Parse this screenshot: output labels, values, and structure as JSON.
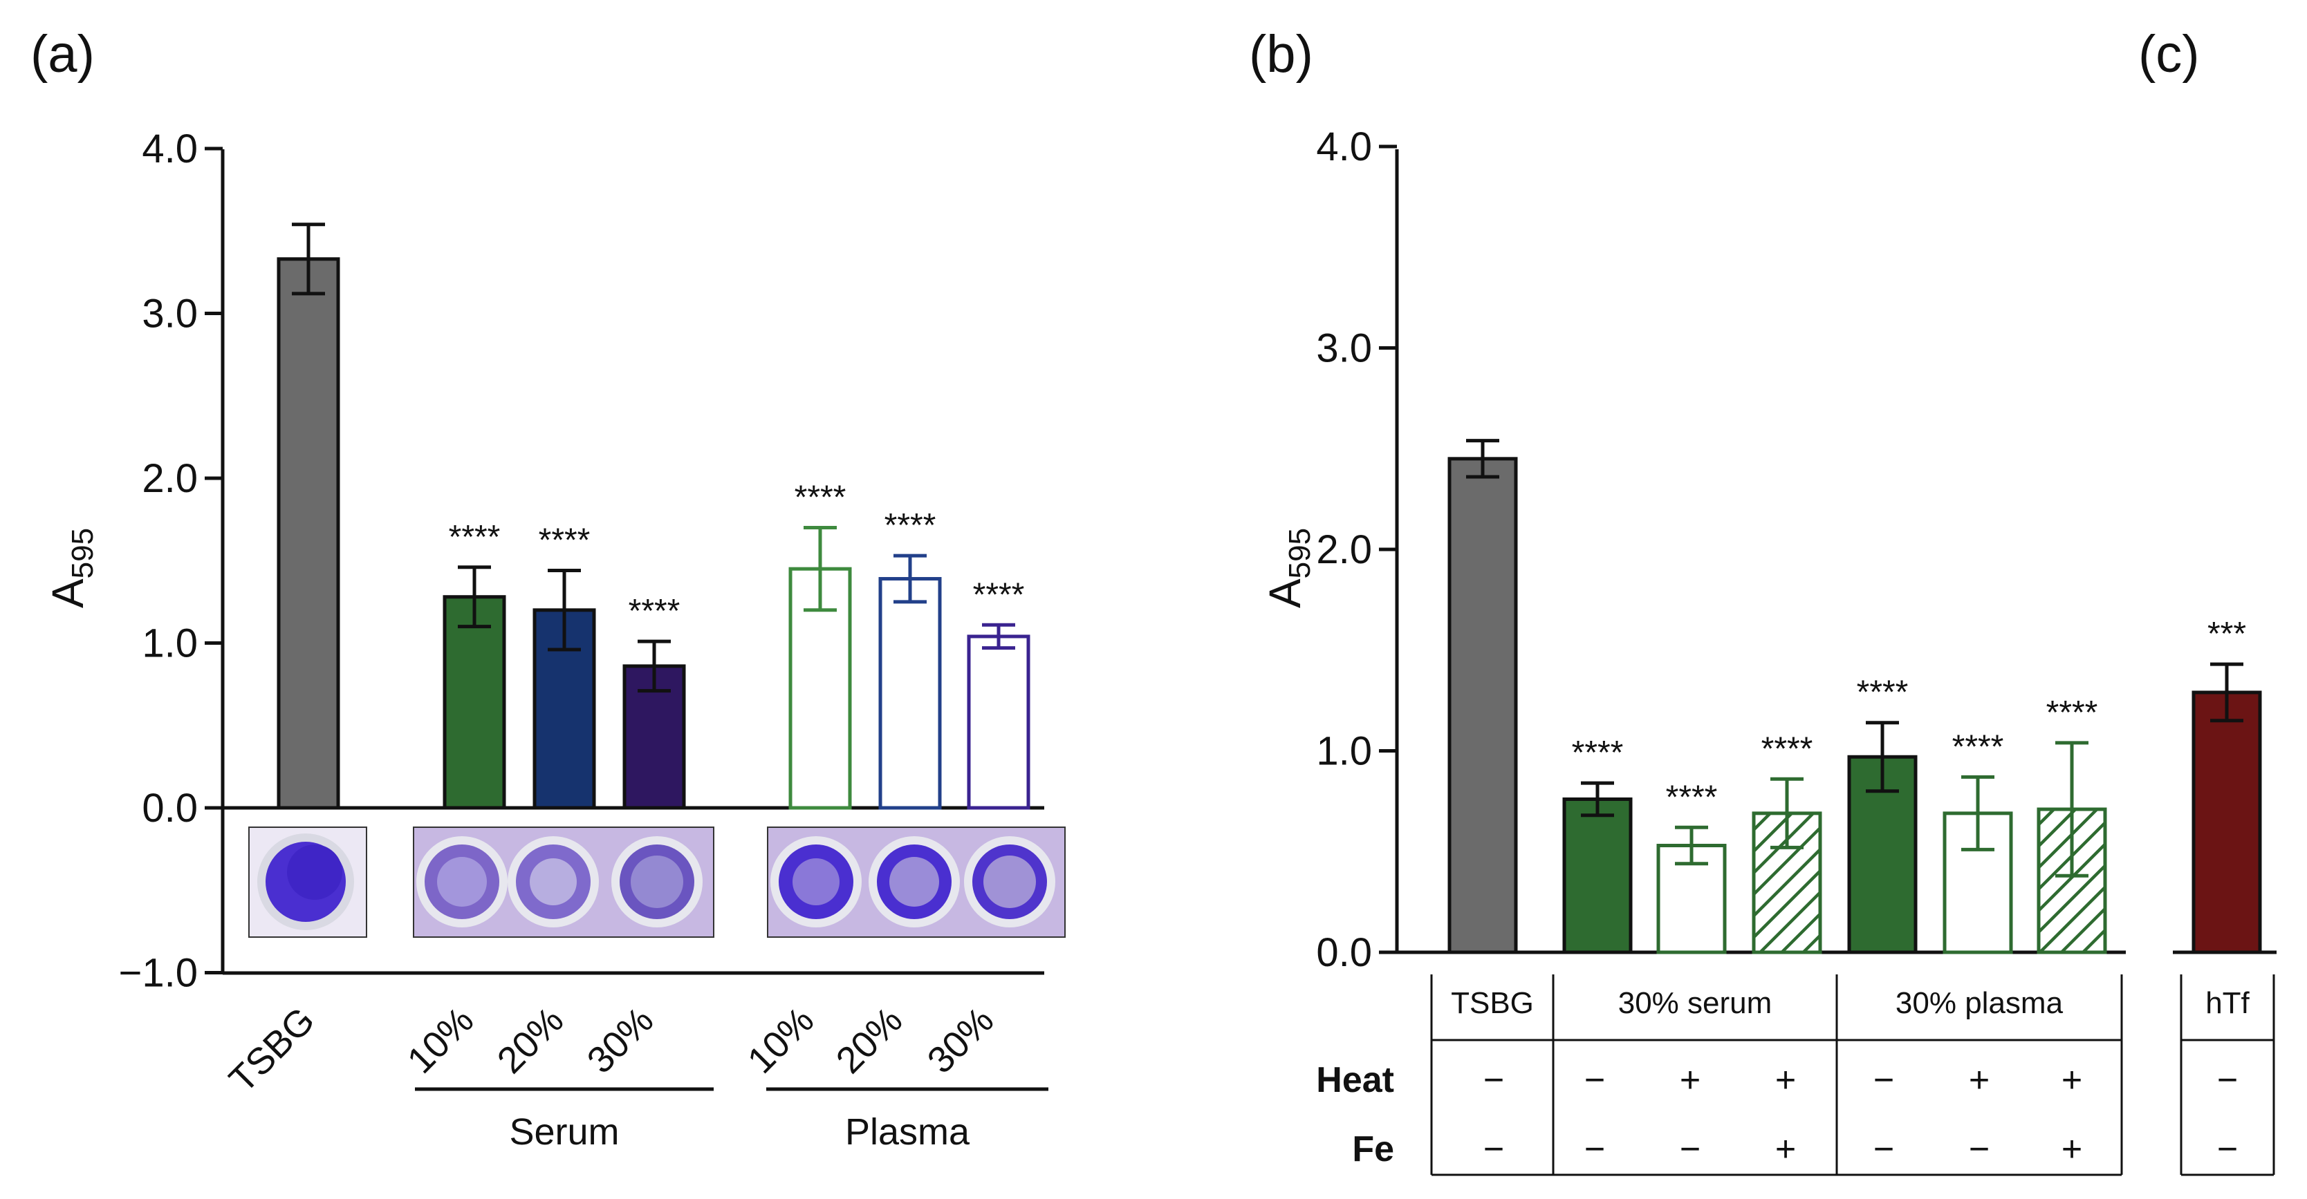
{
  "colors": {
    "tsbg": "#6b6b6b",
    "serum10": "#2e6b30",
    "serum20": "#16336e",
    "serum30": "#2e1760",
    "plasma10": "#3e8a3e",
    "plasma20": "#22408a",
    "plasma30": "#3a2390",
    "htf": "#6b1414",
    "axis": "#111111",
    "well": "#4a2fd0",
    "plate": "#c7b8e2"
  },
  "chart_data": [
    {
      "type": "bar",
      "panel": "(a)",
      "ylabel_main": "A",
      "ylabel_sub": "595",
      "ylim": [
        -1.0,
        4.0
      ],
      "yticks": [
        "4.0",
        "3.0",
        "2.0",
        "1.0",
        "0.0",
        "−1.0"
      ],
      "ytick_values": [
        4.0,
        3.0,
        2.0,
        1.0,
        0.0,
        -1.0
      ],
      "categories": [
        "TSBG",
        "10%",
        "20%",
        "30%",
        "10%",
        "20%",
        "30%"
      ],
      "groups": [
        "Serum",
        "Plasma"
      ],
      "bars": [
        {
          "label": "TSBG",
          "value": 3.33,
          "err": 0.21,
          "color": "tsbg",
          "style": "filled",
          "star": ""
        },
        {
          "label": "Serum 10%",
          "value": 1.28,
          "err": 0.18,
          "color": "serum10",
          "style": "filled",
          "star": "****"
        },
        {
          "label": "Serum 20%",
          "value": 1.2,
          "err": 0.24,
          "color": "serum20",
          "style": "filled",
          "star": "****"
        },
        {
          "label": "Serum 30%",
          "value": 0.86,
          "err": 0.15,
          "color": "serum30",
          "style": "filled",
          "star": "****"
        },
        {
          "label": "Plasma 10%",
          "value": 1.45,
          "err": 0.25,
          "color": "plasma10",
          "style": "open",
          "star": "****"
        },
        {
          "label": "Plasma 20%",
          "value": 1.39,
          "err": 0.14,
          "color": "plasma20",
          "style": "open",
          "star": "****"
        },
        {
          "label": "Plasma 30%",
          "value": 1.04,
          "err": 0.07,
          "color": "plasma30",
          "style": "open",
          "star": "****"
        }
      ]
    },
    {
      "type": "bar",
      "panel": "(b)",
      "ylabel_main": "A",
      "ylabel_sub": "595",
      "ylim": [
        0.0,
        4.0
      ],
      "yticks": [
        "4.0",
        "3.0",
        "2.0",
        "1.0",
        "0.0"
      ],
      "ytick_values": [
        4.0,
        3.0,
        2.0,
        1.0,
        0.0
      ],
      "bars": [
        {
          "label": "TSBG",
          "value": 2.45,
          "err": 0.09,
          "color": "tsbg",
          "style": "filled",
          "star": ""
        },
        {
          "label": "30% serum",
          "value": 0.76,
          "err": 0.08,
          "color": "serum10",
          "style": "filled",
          "star": "****"
        },
        {
          "label": "30% serum heat",
          "value": 0.53,
          "err": 0.09,
          "color": "serum10",
          "style": "open",
          "star": "****"
        },
        {
          "label": "30% serum heat Fe",
          "value": 0.69,
          "err": 0.17,
          "color": "serum10",
          "style": "hatched",
          "star": "****"
        },
        {
          "label": "30% plasma",
          "value": 0.97,
          "err": 0.17,
          "color": "serum10",
          "style": "filled",
          "star": "****"
        },
        {
          "label": "30% plasma heat",
          "value": 0.69,
          "err": 0.18,
          "color": "serum10",
          "style": "open",
          "star": "****"
        },
        {
          "label": "30% plasma heat Fe",
          "value": 0.71,
          "err": 0.33,
          "color": "serum10",
          "style": "hatched",
          "star": "****"
        }
      ],
      "table": {
        "headers": [
          "TSBG",
          "30% serum",
          "30% plasma"
        ],
        "row_labels": [
          "Heat",
          "Fe"
        ],
        "heat": [
          "−",
          "−",
          "+",
          "+",
          "−",
          "+",
          "+"
        ],
        "fe": [
          "−",
          "−",
          "−",
          "+",
          "−",
          "−",
          "+"
        ]
      }
    },
    {
      "type": "bar",
      "panel": "(c)",
      "bars": [
        {
          "label": "hTf",
          "value": 1.29,
          "err": 0.14,
          "color": "htf",
          "style": "filled",
          "star": "***"
        }
      ],
      "table": {
        "header": "hTf",
        "heat": "−",
        "fe": "−"
      }
    }
  ]
}
